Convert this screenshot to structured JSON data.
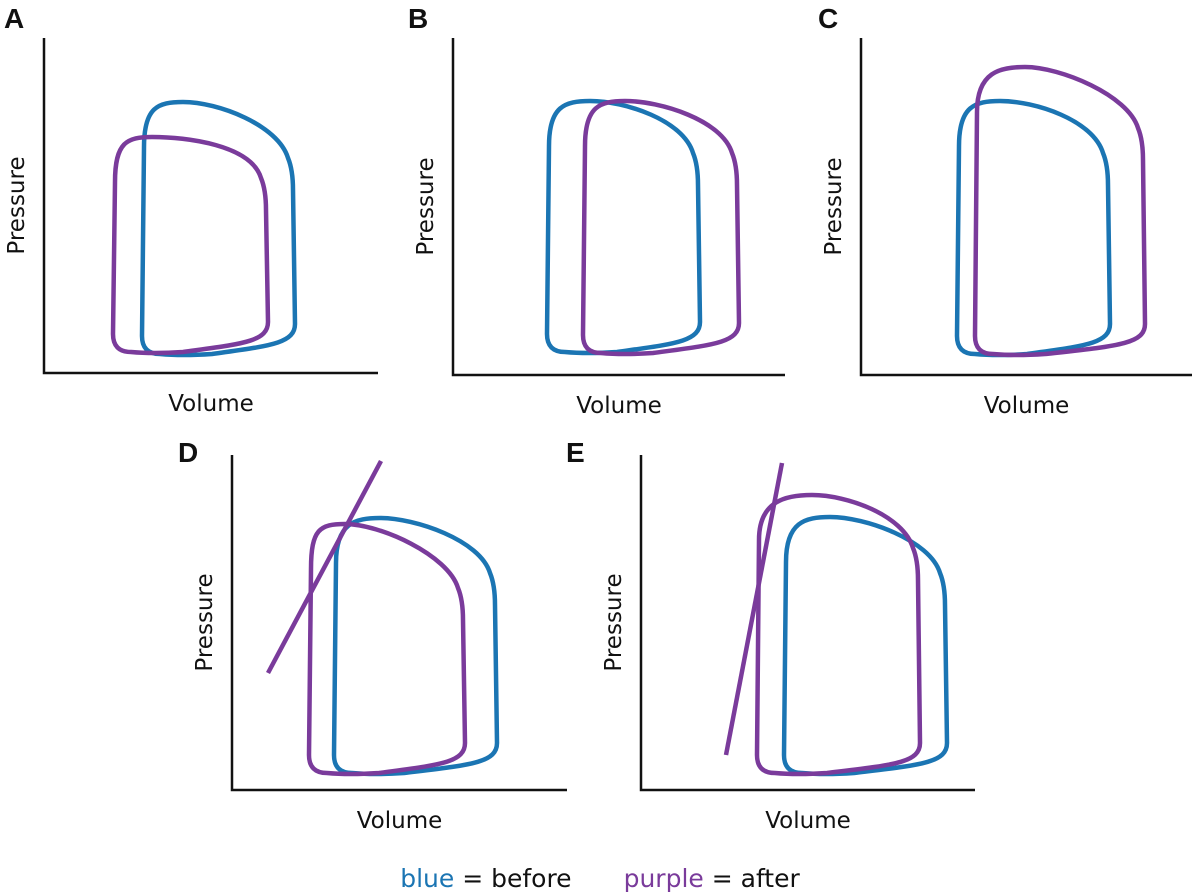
{
  "colors": {
    "before": "#1b75b3",
    "after": "#7a3b9b",
    "axis": "#111111"
  },
  "panels": [
    {
      "letter": "A",
      "xlabel": "Volume",
      "ylabel": "Pressure"
    },
    {
      "letter": "B",
      "xlabel": "Volume",
      "ylabel": "Pressure"
    },
    {
      "letter": "C",
      "xlabel": "Volume",
      "ylabel": "Pressure"
    },
    {
      "letter": "D",
      "xlabel": "Volume",
      "ylabel": "Pressure"
    },
    {
      "letter": "E",
      "xlabel": "Volume",
      "ylabel": "Pressure"
    }
  ],
  "legend": {
    "blue_word": "blue",
    "blue_rest": " = before",
    "purple_word": "purple",
    "purple_rest": " = after"
  }
}
